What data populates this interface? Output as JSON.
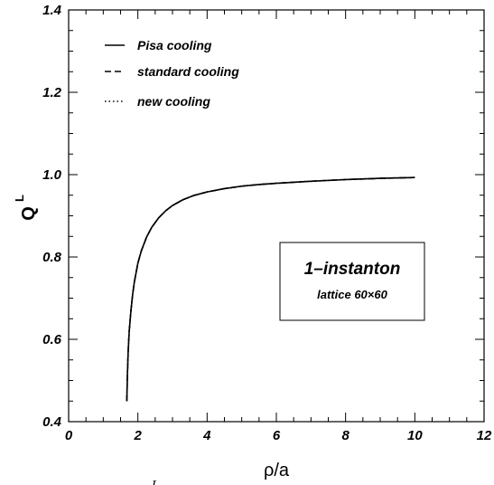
{
  "chart_data": {
    "type": "line",
    "xlabel": "ρ/a",
    "ylabel": "Q",
    "ylabel_superscript": "L",
    "xlim": [
      0,
      12
    ],
    "ylim": [
      0.4,
      1.4
    ],
    "x_ticks": [
      "0",
      "2",
      "4",
      "6",
      "8",
      "10",
      "12"
    ],
    "y_ticks": [
      "0.4",
      "0.6",
      "0.8",
      "1.0",
      "1.2",
      "1.4"
    ],
    "grid": false,
    "legend_position": "top-left",
    "series": [
      {
        "name": "Pisa cooling",
        "style": "solid",
        "x": [
          1.68,
          1.7,
          1.72,
          1.75,
          1.8,
          1.85,
          1.9,
          2.0,
          2.1,
          2.25,
          2.4,
          2.6,
          2.8,
          3.0,
          3.3,
          3.6,
          4.0,
          4.5,
          5.0,
          5.5,
          6.0,
          7.0,
          8.0,
          9.0,
          10.0
        ],
        "y": [
          0.45,
          0.52,
          0.57,
          0.62,
          0.67,
          0.71,
          0.74,
          0.785,
          0.815,
          0.848,
          0.872,
          0.895,
          0.912,
          0.925,
          0.939,
          0.949,
          0.958,
          0.966,
          0.972,
          0.976,
          0.979,
          0.984,
          0.988,
          0.991,
          0.993
        ]
      },
      {
        "name": "standard cooling",
        "style": "dashed",
        "x": [
          1.68,
          1.7,
          1.72,
          1.75,
          1.8,
          1.85,
          1.9,
          2.0,
          2.1,
          2.25,
          2.4,
          2.6,
          2.8,
          3.0,
          3.3,
          3.6,
          4.0,
          4.5,
          5.0,
          5.5,
          6.0,
          7.0,
          8.0,
          9.0,
          10.0
        ],
        "y": [
          0.45,
          0.52,
          0.57,
          0.62,
          0.67,
          0.71,
          0.74,
          0.785,
          0.815,
          0.848,
          0.872,
          0.895,
          0.912,
          0.925,
          0.939,
          0.949,
          0.958,
          0.966,
          0.972,
          0.976,
          0.979,
          0.984,
          0.988,
          0.991,
          0.993
        ]
      },
      {
        "name": "new cooling",
        "style": "dotted",
        "x": [
          1.68,
          1.7,
          1.72,
          1.75,
          1.8,
          1.85,
          1.9,
          2.0,
          2.1,
          2.25,
          2.4,
          2.6,
          2.8,
          3.0,
          3.3,
          3.6,
          4.0,
          4.5,
          5.0,
          5.5,
          6.0,
          7.0,
          8.0,
          9.0,
          10.0
        ],
        "y": [
          0.45,
          0.52,
          0.57,
          0.62,
          0.67,
          0.71,
          0.74,
          0.785,
          0.815,
          0.848,
          0.872,
          0.895,
          0.912,
          0.925,
          0.939,
          0.949,
          0.958,
          0.966,
          0.972,
          0.976,
          0.979,
          0.984,
          0.988,
          0.991,
          0.993
        ]
      }
    ],
    "annotation": {
      "title": "1–instanton",
      "subtitle": "lattice 60×60"
    },
    "footer_fragment": "L"
  }
}
